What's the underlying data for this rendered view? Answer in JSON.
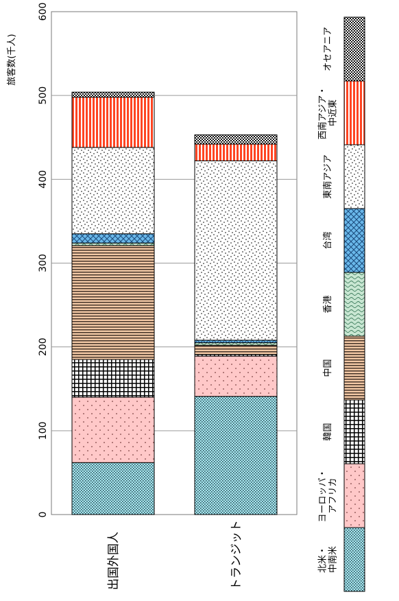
{
  "chart_data": {
    "type": "bar",
    "stacked": true,
    "orientation": "rotated-90",
    "ylabel": "旅客数(千人)",
    "ylim": [
      0,
      600
    ],
    "yticks": [
      0,
      100,
      200,
      300,
      400,
      500,
      600
    ],
    "grid": true,
    "legend_position": "right",
    "categories": [
      "出国外国人",
      "トランジット"
    ],
    "series": [
      {
        "name": "北米・中南米",
        "legend_lines": [
          "北米・",
          "中南米"
        ],
        "values": [
          62,
          141
        ],
        "color": "#a6e8f0",
        "pattern": "dense-dots"
      },
      {
        "name": "ヨーロッパ・アフリカ",
        "legend_lines": [
          "ヨーロッパ・",
          "アフリカ"
        ],
        "values": [
          78,
          48
        ],
        "color": "#ffc8c8",
        "pattern": "sparse-dots"
      },
      {
        "name": "韓国",
        "legend_lines": [
          "韓国"
        ],
        "values": [
          45,
          2
        ],
        "color": "#ffffff",
        "pattern": "grid"
      },
      {
        "name": "中国",
        "legend_lines": [
          "中国"
        ],
        "values": [
          136,
          11
        ],
        "color": "#f2c8a5",
        "pattern": "horizontal-lines"
      },
      {
        "name": "香港",
        "legend_lines": [
          "香港"
        ],
        "values": [
          3,
          3
        ],
        "color": "#c8e6d2",
        "pattern": "waves"
      },
      {
        "name": "台湾",
        "legend_lines": [
          "台湾"
        ],
        "values": [
          11,
          3
        ],
        "color": "#6ab8ea",
        "pattern": "crosshatch"
      },
      {
        "name": "東南アジア",
        "legend_lines": [
          "東南アジア"
        ],
        "values": [
          103,
          214
        ],
        "color": "#ffffff",
        "pattern": "scatter-dots"
      },
      {
        "name": "西南アジア・中近東",
        "legend_lines": [
          "西南アジア・",
          "中近東"
        ],
        "values": [
          60,
          20
        ],
        "color": "#ff4422",
        "pattern": "vertical-stripes"
      },
      {
        "name": "オセアニア",
        "legend_lines": [
          "オセアニア"
        ],
        "values": [
          6,
          11
        ],
        "color": "#ffffff",
        "pattern": "checker"
      }
    ]
  }
}
